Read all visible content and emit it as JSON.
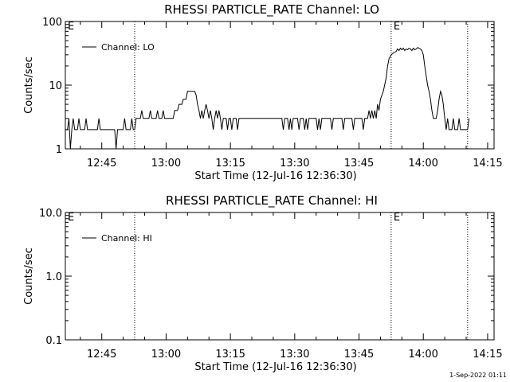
{
  "chart_data": [
    {
      "type": "line",
      "title": "RHESSI PARTICLE_RATE Channel: LO",
      "xlabel": "Start Time (12-Jul-16 12:36:30)",
      "ylabel": "Counts/sec",
      "yscale": "log",
      "ylim": [
        1,
        100
      ],
      "xlim": [
        "12:36:30",
        "14:16:30"
      ],
      "xticks": [
        "12:45",
        "13:00",
        "13:15",
        "13:30",
        "13:45",
        "14:00",
        "14:15"
      ],
      "yticks": [
        "1",
        "10",
        "100"
      ],
      "legend": {
        "entries": [
          "Channel: LO"
        ],
        "placement": "top-left"
      },
      "markers": [
        {
          "time": "12:36:30",
          "label": "E"
        },
        {
          "time": "12:52:40",
          "label": ""
        },
        {
          "time": "13:52:30",
          "label": "E"
        },
        {
          "time": "14:10:20",
          "label": ""
        }
      ],
      "series": [
        {
          "name": "Channel: LO",
          "points": [
            [
              "12:36:30",
              2
            ],
            [
              "12:37:00",
              2
            ],
            [
              "12:37:20",
              3
            ],
            [
              "12:37:40",
              1
            ],
            [
              "12:38:00",
              2
            ],
            [
              "12:38:20",
              3
            ],
            [
              "12:38:40",
              2
            ],
            [
              "12:39:20",
              2
            ],
            [
              "12:39:40",
              3
            ],
            [
              "12:40:00",
              2
            ],
            [
              "12:41:00",
              2
            ],
            [
              "12:41:20",
              3
            ],
            [
              "12:41:40",
              2
            ],
            [
              "12:44:00",
              2
            ],
            [
              "12:44:20",
              3
            ],
            [
              "12:44:40",
              2
            ],
            [
              "12:48:00",
              2
            ],
            [
              "12:48:20",
              1
            ],
            [
              "12:48:40",
              2
            ],
            [
              "12:50:00",
              2
            ],
            [
              "12:50:20",
              3
            ],
            [
              "12:50:40",
              2
            ],
            [
              "12:51:40",
              2
            ],
            [
              "12:52:00",
              3
            ],
            [
              "12:52:20",
              2
            ],
            [
              "12:52:40",
              2
            ],
            [
              "12:53:00",
              3
            ],
            [
              "12:54:00",
              3
            ],
            [
              "12:54:20",
              4
            ],
            [
              "12:54:40",
              3
            ],
            [
              "12:56:00",
              3
            ],
            [
              "12:56:20",
              4
            ],
            [
              "12:56:40",
              3
            ],
            [
              "12:57:40",
              3
            ],
            [
              "12:58:00",
              4
            ],
            [
              "12:58:20",
              3
            ],
            [
              "12:59:00",
              3
            ],
            [
              "12:59:20",
              4
            ],
            [
              "12:59:40",
              3
            ],
            [
              "13:01:40",
              3
            ],
            [
              "13:02:00",
              4
            ],
            [
              "13:02:40",
              4
            ],
            [
              "13:03:00",
              5
            ],
            [
              "13:03:40",
              5
            ],
            [
              "13:04:00",
              6
            ],
            [
              "13:04:40",
              6
            ],
            [
              "13:05:00",
              8
            ],
            [
              "13:06:40",
              8
            ],
            [
              "13:07:00",
              7
            ],
            [
              "13:07:20",
              5
            ],
            [
              "13:07:40",
              4
            ],
            [
              "13:08:00",
              3
            ],
            [
              "13:08:20",
              4
            ],
            [
              "13:08:40",
              3
            ],
            [
              "13:09:00",
              4
            ],
            [
              "13:09:20",
              5
            ],
            [
              "13:09:40",
              4
            ],
            [
              "13:10:00",
              3
            ],
            [
              "13:10:20",
              4
            ],
            [
              "13:10:40",
              3
            ],
            [
              "13:11:00",
              2
            ],
            [
              "13:11:20",
              3
            ],
            [
              "13:11:40",
              4
            ],
            [
              "13:12:00",
              3
            ],
            [
              "13:12:20",
              4
            ],
            [
              "13:12:40",
              3
            ],
            [
              "13:13:00",
              2
            ],
            [
              "13:13:20",
              3
            ],
            [
              "13:14:00",
              3
            ],
            [
              "13:14:20",
              2
            ],
            [
              "13:14:40",
              3
            ],
            [
              "13:15:00",
              3
            ],
            [
              "13:15:20",
              2
            ],
            [
              "13:15:40",
              3
            ],
            [
              "13:16:20",
              3
            ],
            [
              "13:16:40",
              2
            ],
            [
              "13:17:00",
              3
            ],
            [
              "13:27:00",
              3
            ],
            [
              "13:27:20",
              2
            ],
            [
              "13:27:40",
              3
            ],
            [
              "13:28:20",
              3
            ],
            [
              "13:28:40",
              2
            ],
            [
              "13:29:00",
              3
            ],
            [
              "13:29:20",
              2
            ],
            [
              "13:29:40",
              3
            ],
            [
              "13:30:40",
              3
            ],
            [
              "13:31:00",
              2
            ],
            [
              "13:31:20",
              3
            ],
            [
              "13:32:00",
              3
            ],
            [
              "13:32:20",
              2
            ],
            [
              "13:32:40",
              3
            ],
            [
              "13:33:00",
              2
            ],
            [
              "13:33:20",
              3
            ],
            [
              "13:35:00",
              3
            ],
            [
              "13:35:20",
              2
            ],
            [
              "13:35:40",
              3
            ],
            [
              "13:36:00",
              2
            ],
            [
              "13:36:20",
              3
            ],
            [
              "13:38:20",
              3
            ],
            [
              "13:38:40",
              2
            ],
            [
              "13:39:00",
              3
            ],
            [
              "13:41:00",
              3
            ],
            [
              "13:41:20",
              2
            ],
            [
              "13:41:40",
              3
            ],
            [
              "13:43:20",
              3
            ],
            [
              "13:43:40",
              2
            ],
            [
              "13:44:00",
              3
            ],
            [
              "13:45:40",
              3
            ],
            [
              "13:46:00",
              2
            ],
            [
              "13:46:20",
              3
            ],
            [
              "13:47:00",
              3
            ],
            [
              "13:47:20",
              4
            ],
            [
              "13:47:40",
              3
            ],
            [
              "13:48:00",
              4
            ],
            [
              "13:48:20",
              3
            ],
            [
              "13:48:40",
              4
            ],
            [
              "13:49:00",
              3
            ],
            [
              "13:49:20",
              5
            ],
            [
              "13:49:40",
              4
            ],
            [
              "13:50:00",
              6
            ],
            [
              "13:50:40",
              8
            ],
            [
              "13:51:20",
              13
            ],
            [
              "13:51:40",
              20
            ],
            [
              "13:52:00",
              26
            ],
            [
              "13:52:30",
              30
            ],
            [
              "13:53:00",
              32
            ],
            [
              "13:53:40",
              34
            ],
            [
              "13:54:00",
              37
            ],
            [
              "13:54:20",
              35
            ],
            [
              "13:54:40",
              38
            ],
            [
              "13:55:00",
              36
            ],
            [
              "13:55:20",
              38
            ],
            [
              "13:55:40",
              35
            ],
            [
              "13:56:00",
              37
            ],
            [
              "13:56:20",
              36
            ],
            [
              "13:56:40",
              38
            ],
            [
              "13:57:00",
              37
            ],
            [
              "13:57:20",
              35
            ],
            [
              "13:57:40",
              38
            ],
            [
              "13:58:00",
              36
            ],
            [
              "13:58:20",
              37
            ],
            [
              "13:58:40",
              39
            ],
            [
              "13:59:00",
              38
            ],
            [
              "13:59:20",
              37
            ],
            [
              "13:59:40",
              35
            ],
            [
              "14:00:00",
              30
            ],
            [
              "14:00:20",
              20
            ],
            [
              "14:00:40",
              14
            ],
            [
              "14:01:00",
              10
            ],
            [
              "14:01:20",
              8
            ],
            [
              "14:01:40",
              6
            ],
            [
              "14:02:00",
              4
            ],
            [
              "14:02:20",
              3
            ],
            [
              "14:02:40",
              3
            ],
            [
              "14:03:00",
              3
            ],
            [
              "14:03:20",
              4
            ],
            [
              "14:03:40",
              6
            ],
            [
              "14:04:00",
              8
            ],
            [
              "14:04:20",
              7
            ],
            [
              "14:04:40",
              5
            ],
            [
              "14:05:00",
              3
            ],
            [
              "14:05:20",
              2
            ],
            [
              "14:05:40",
              3
            ],
            [
              "14:06:00",
              2
            ],
            [
              "14:06:40",
              2
            ],
            [
              "14:07:00",
              3
            ],
            [
              "14:07:20",
              2
            ],
            [
              "14:08:00",
              2
            ],
            [
              "14:08:20",
              3
            ],
            [
              "14:08:40",
              2
            ],
            [
              "14:10:20",
              2
            ],
            [
              "14:10:40",
              3
            ]
          ]
        }
      ]
    },
    {
      "type": "line",
      "title": "RHESSI PARTICLE_RATE Channel: HI",
      "xlabel": "Start Time (12-Jul-16 12:36:30)",
      "ylabel": "Counts/sec",
      "yscale": "log",
      "ylim": [
        0.1,
        10
      ],
      "xlim": [
        "12:36:30",
        "14:16:30"
      ],
      "xticks": [
        "12:45",
        "13:00",
        "13:15",
        "13:30",
        "13:45",
        "14:00",
        "14:15"
      ],
      "yticks": [
        "0.1",
        "1.0",
        "10.0"
      ],
      "legend": {
        "entries": [
          "Channel: HI"
        ],
        "placement": "top-left"
      },
      "markers": [
        {
          "time": "12:36:30",
          "label": "E"
        },
        {
          "time": "12:52:40",
          "label": ""
        },
        {
          "time": "13:52:30",
          "label": "E"
        },
        {
          "time": "14:10:20",
          "label": ""
        }
      ],
      "series": [
        {
          "name": "Channel: HI",
          "points": []
        }
      ]
    }
  ],
  "footer": {
    "timestamp": "1-Sep-2022 01:11"
  }
}
